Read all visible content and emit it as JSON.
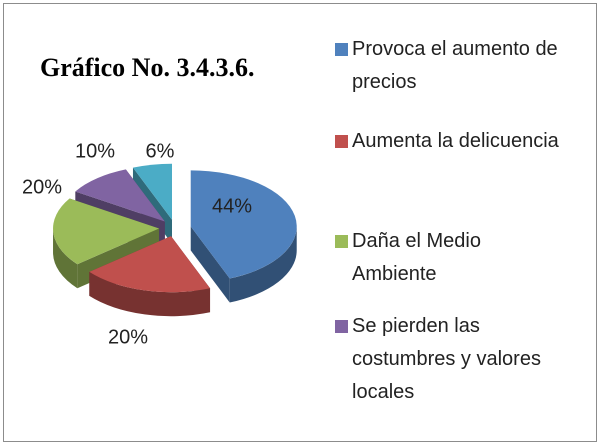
{
  "chart_data": {
    "type": "pie",
    "title": "Gráfico No. 3.4.3.6.",
    "categories": [
      "Provoca el aumento de precios",
      "Aumenta la delicuencia",
      "Daña el Medio Ambiente",
      "Se pierden las costumbres y valores locales",
      null
    ],
    "values": [
      44,
      20,
      20,
      10,
      6
    ],
    "value_labels": [
      "44%",
      "20%",
      "20%",
      "10%",
      "6%"
    ],
    "colors": [
      "#4f81bd",
      "#c0504d",
      "#9bbb59",
      "#8064a2",
      "#4bacc6"
    ],
    "legend": "right"
  }
}
